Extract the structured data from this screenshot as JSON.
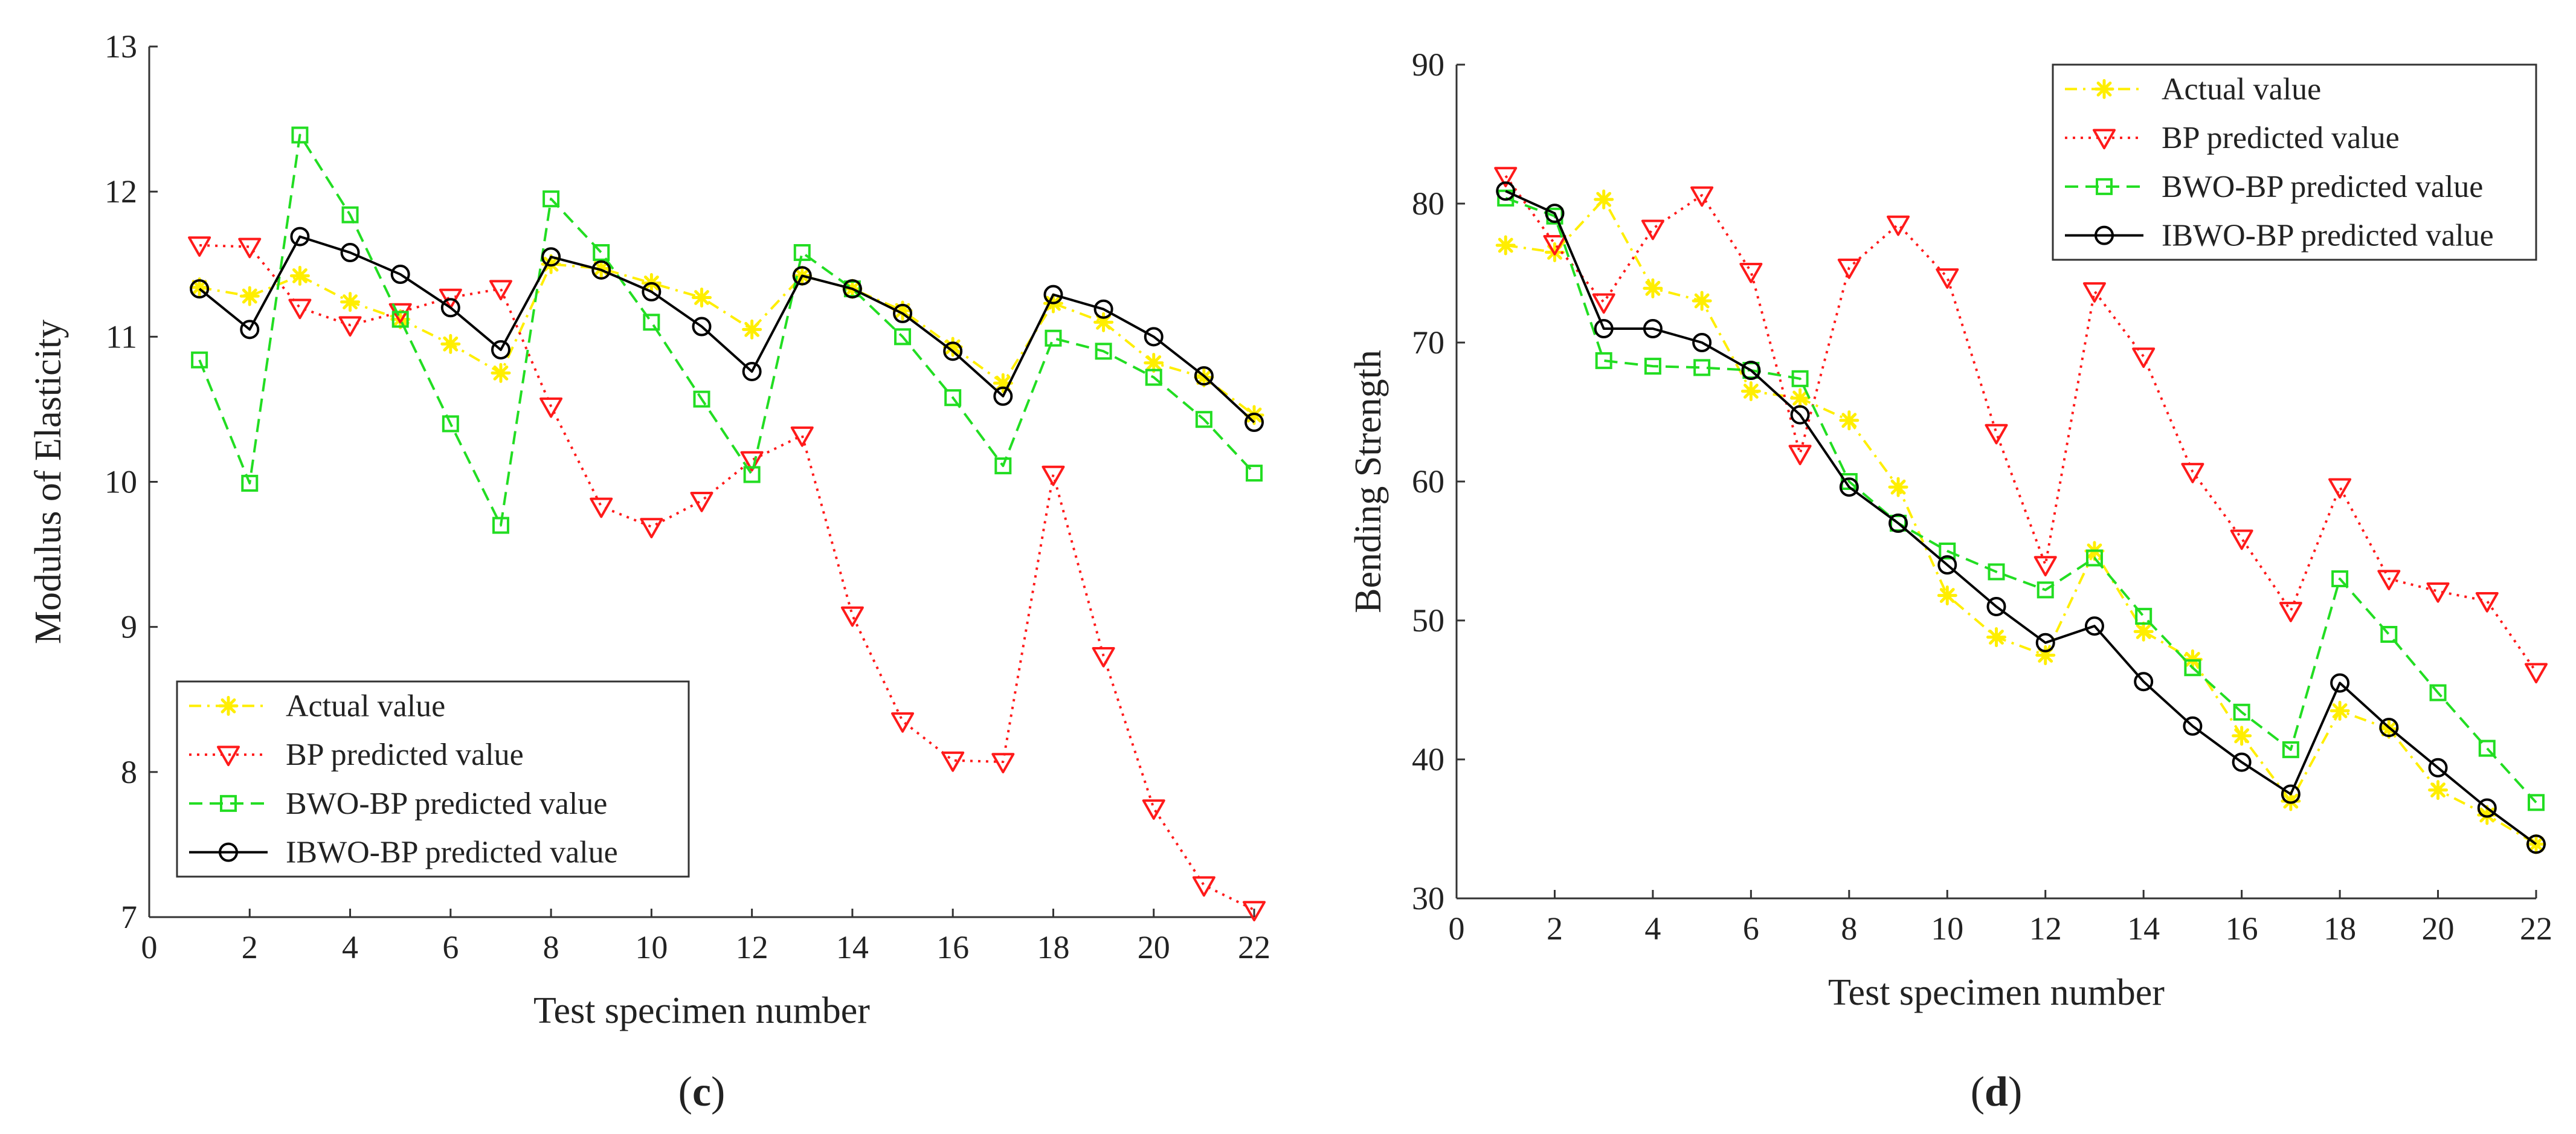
{
  "chart_data": [
    {
      "type": "line",
      "caption_letter": "c",
      "xlabel": "Test specimen number",
      "ylabel": "Modulus of Elasticity",
      "xlim": [
        0,
        22
      ],
      "ylim": [
        7,
        13
      ],
      "xticks": [
        0,
        2,
        4,
        6,
        8,
        10,
        12,
        14,
        16,
        18,
        20,
        22
      ],
      "yticks": [
        7,
        8,
        9,
        10,
        11,
        12,
        13
      ],
      "grid": false,
      "legend_position": "bottom-left",
      "x": [
        1,
        2,
        3,
        4,
        5,
        6,
        7,
        8,
        9,
        10,
        11,
        12,
        13,
        14,
        15,
        16,
        17,
        18,
        19,
        20,
        21,
        22
      ],
      "series": [
        {
          "name": "Actual value",
          "color": "#ffee00",
          "dash": "dashdot",
          "marker": "asterisk",
          "values": [
            11.34,
            11.28,
            11.42,
            11.24,
            11.12,
            10.95,
            10.75,
            11.5,
            11.47,
            11.37,
            11.27,
            11.05,
            11.42,
            11.33,
            11.18,
            10.93,
            10.68,
            11.23,
            11.1,
            10.82,
            10.72,
            10.46
          ]
        },
        {
          "name": "BP predicted value",
          "color": "#ff1a1a",
          "dash": "dotted",
          "marker": "triangle-down",
          "values": [
            11.63,
            11.62,
            11.2,
            11.08,
            11.17,
            11.27,
            11.33,
            10.52,
            9.83,
            9.69,
            9.87,
            10.15,
            10.32,
            9.08,
            8.35,
            8.08,
            8.07,
            10.05,
            8.8,
            7.75,
            7.22,
            7.05
          ]
        },
        {
          "name": "BWO-BP predicted value",
          "color": "#22dd22",
          "dash": "dashed",
          "marker": "square",
          "values": [
            10.84,
            9.99,
            12.39,
            11.84,
            11.12,
            10.4,
            9.7,
            11.95,
            11.58,
            11.1,
            10.57,
            10.05,
            11.58,
            11.33,
            11.0,
            10.58,
            10.11,
            10.99,
            10.9,
            10.72,
            10.43,
            10.06
          ]
        },
        {
          "name": "IBWO-BP predicted value",
          "color": "#000000",
          "dash": "solid",
          "marker": "circle",
          "values": [
            11.33,
            11.05,
            11.69,
            11.58,
            11.43,
            11.2,
            10.91,
            11.55,
            11.46,
            11.31,
            11.07,
            10.76,
            11.42,
            11.33,
            11.16,
            10.9,
            10.59,
            11.29,
            11.19,
            11.0,
            10.73,
            10.41
          ]
        }
      ]
    },
    {
      "type": "line",
      "caption_letter": "d",
      "xlabel": "Test specimen number",
      "ylabel": "Bending Strength",
      "xlim": [
        0,
        22
      ],
      "ylim": [
        30,
        90
      ],
      "xticks": [
        0,
        2,
        4,
        6,
        8,
        10,
        12,
        14,
        16,
        18,
        20,
        22
      ],
      "yticks": [
        30,
        40,
        50,
        60,
        70,
        80,
        90
      ],
      "grid": false,
      "legend_position": "top-right",
      "x": [
        1,
        2,
        3,
        4,
        5,
        6,
        7,
        8,
        9,
        10,
        11,
        12,
        13,
        14,
        15,
        16,
        17,
        18,
        19,
        20,
        21,
        22
      ],
      "series": [
        {
          "name": "Actual value",
          "color": "#ffee00",
          "dash": "dashdot",
          "marker": "asterisk",
          "values": [
            77.0,
            76.5,
            80.3,
            73.9,
            73.0,
            66.5,
            66.0,
            64.4,
            59.6,
            51.8,
            48.8,
            47.5,
            55.0,
            49.2,
            47.2,
            41.7,
            37.0,
            43.5,
            42.2,
            37.8,
            36.0,
            33.9
          ]
        },
        {
          "name": "BP predicted value",
          "color": "#ff1a1a",
          "dash": "dotted",
          "marker": "triangle-down",
          "values": [
            82.0,
            77.1,
            72.9,
            78.2,
            80.6,
            75.1,
            62.0,
            75.4,
            78.5,
            74.7,
            63.5,
            54.0,
            73.7,
            69.0,
            60.7,
            55.9,
            50.7,
            59.6,
            53.0,
            52.1,
            51.4,
            46.3
          ]
        },
        {
          "name": "BWO-BP predicted value",
          "color": "#22dd22",
          "dash": "dashed",
          "marker": "square",
          "values": [
            80.4,
            79.1,
            68.7,
            68.3,
            68.2,
            68.0,
            67.4,
            60.0,
            57.0,
            55.0,
            53.5,
            52.2,
            54.5,
            50.3,
            46.6,
            43.4,
            40.7,
            53.0,
            49.0,
            44.8,
            40.8,
            36.9
          ]
        },
        {
          "name": "IBWO-BP predicted value",
          "color": "#000000",
          "dash": "solid",
          "marker": "circle",
          "values": [
            80.9,
            79.3,
            71.0,
            71.0,
            70.0,
            68.0,
            64.8,
            59.6,
            57.0,
            54.0,
            51.0,
            48.4,
            49.6,
            45.6,
            42.4,
            39.8,
            37.5,
            45.5,
            42.3,
            39.4,
            36.5,
            33.9
          ]
        }
      ]
    }
  ]
}
